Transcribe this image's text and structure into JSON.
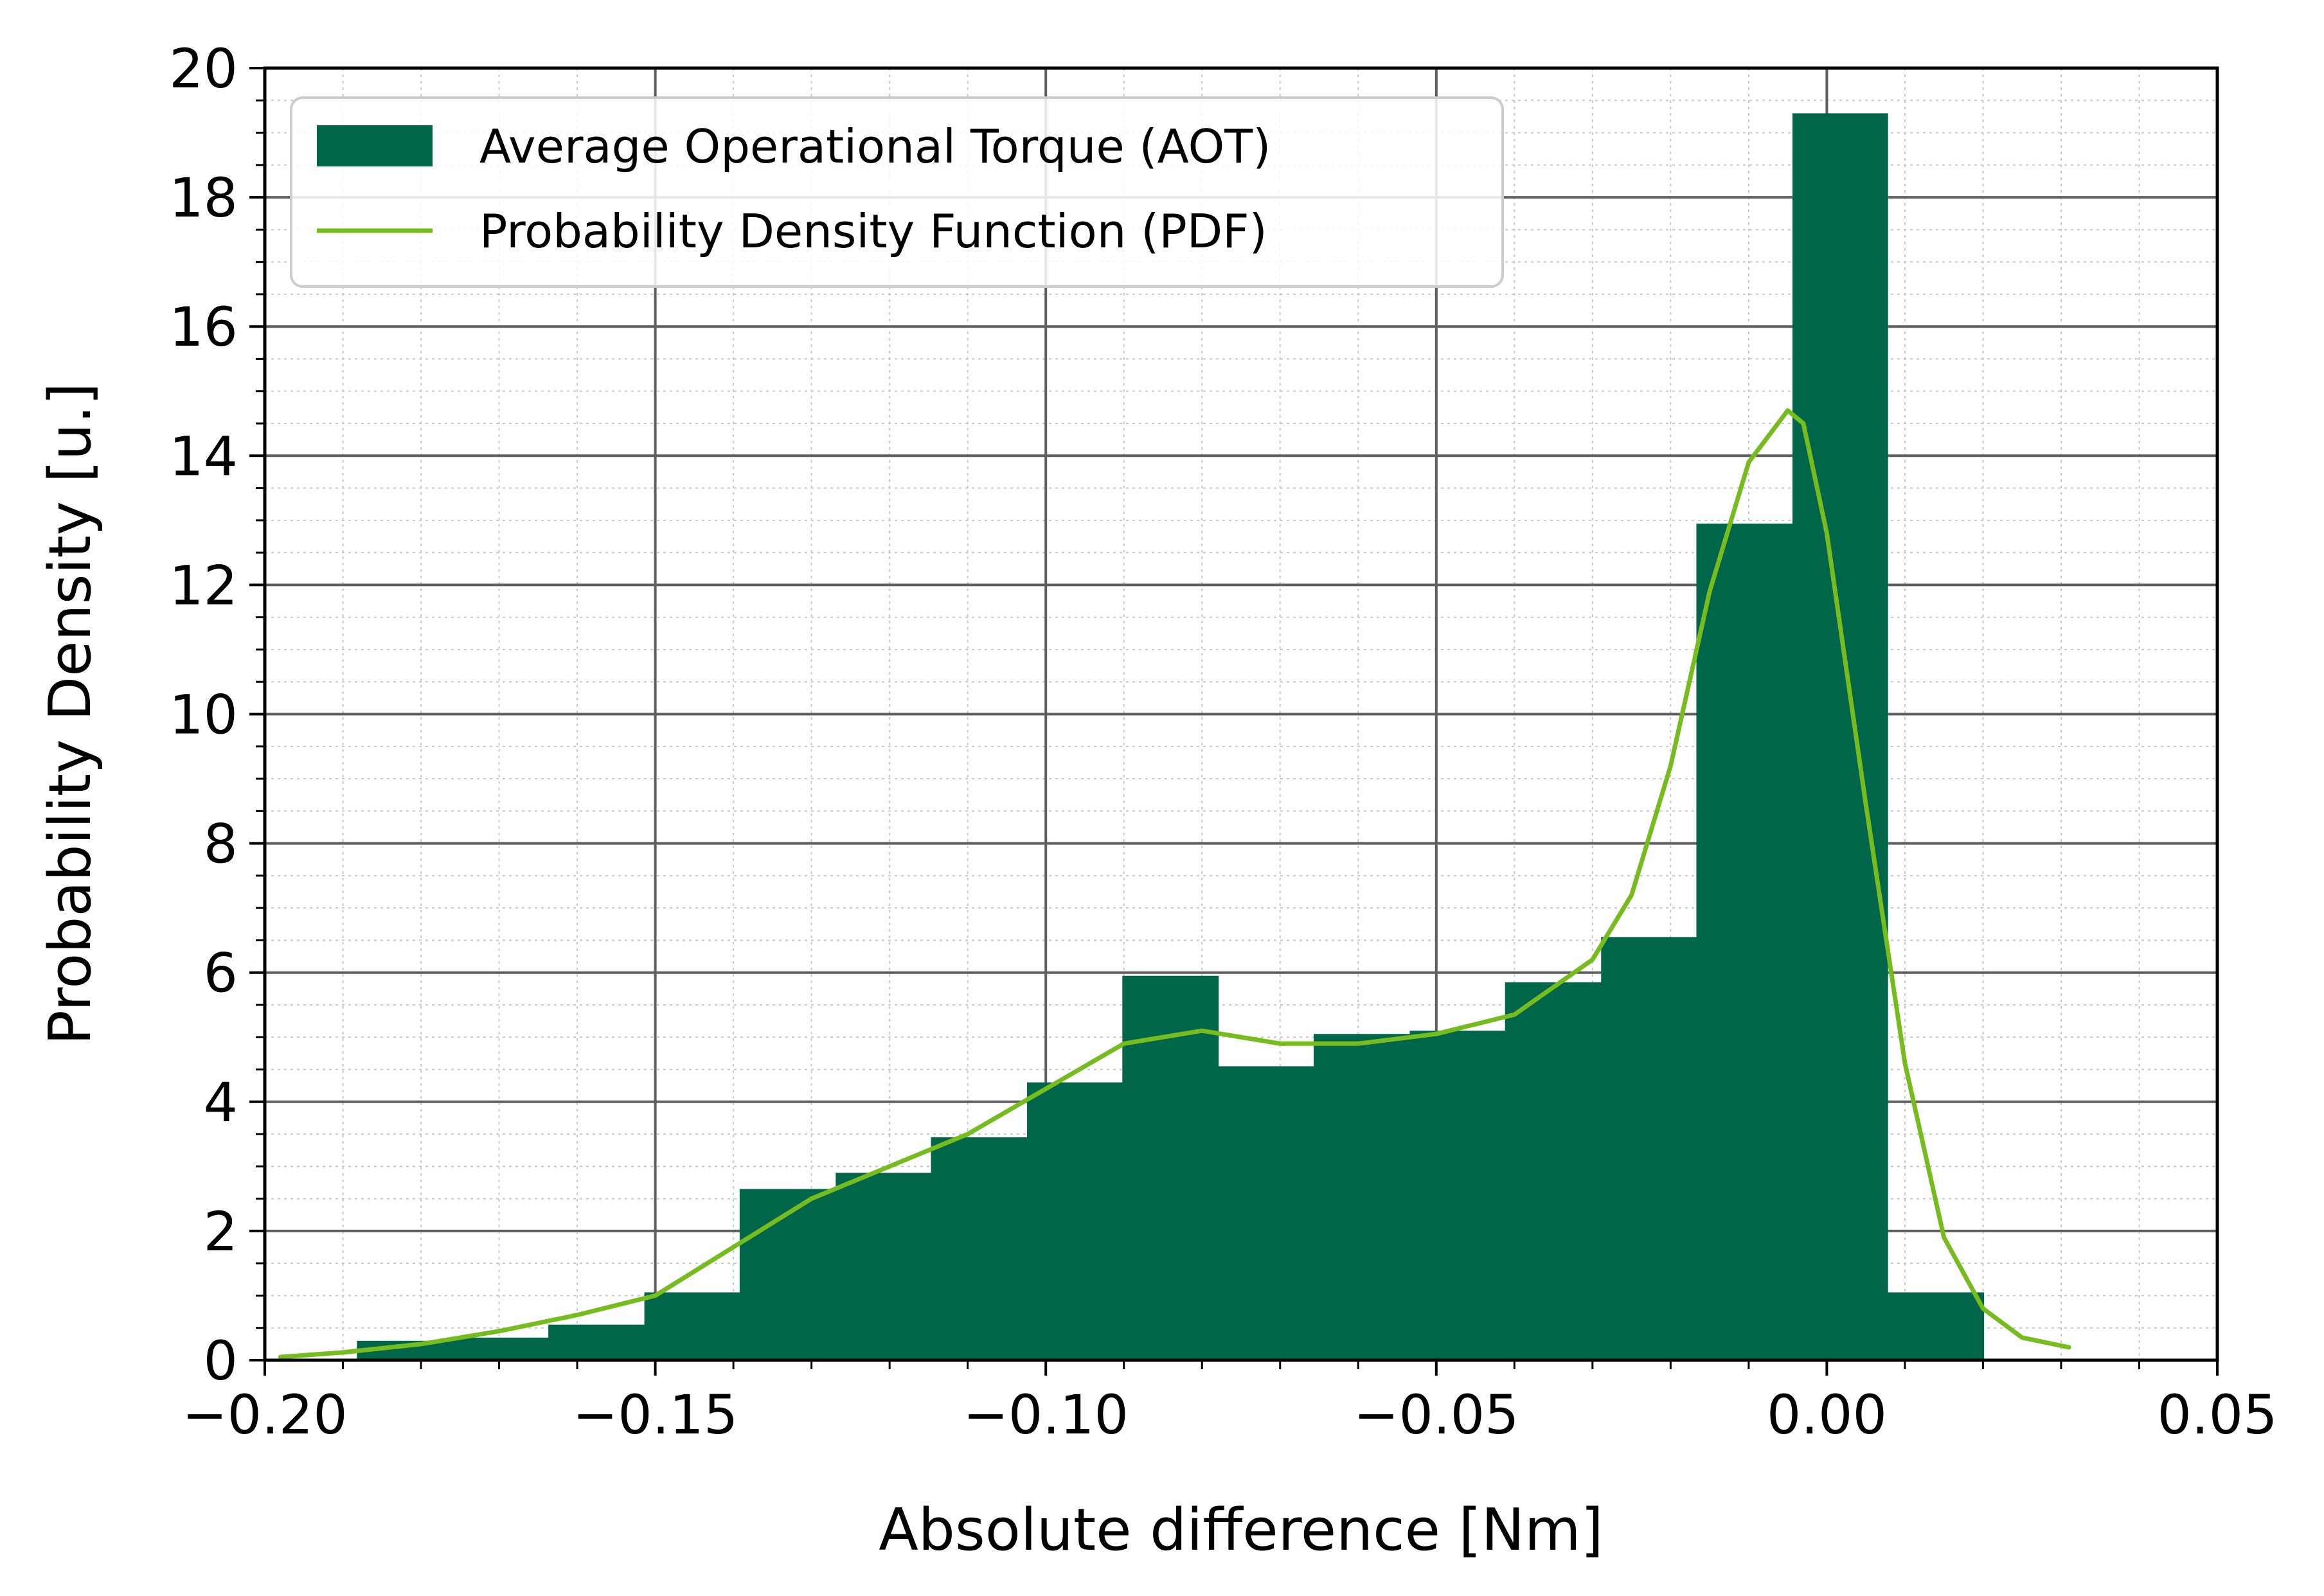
{
  "chart_data": {
    "type": "bar",
    "subtype": "histogram-with-density-line",
    "title": "",
    "xlabel": "Absolute difference [Nm]",
    "ylabel": "Probability Density [u.]",
    "xlim": [
      -0.2,
      0.05
    ],
    "ylim": [
      0,
      20
    ],
    "x_ticks": [
      -0.2,
      -0.15,
      -0.1,
      -0.05,
      0.0,
      0.05
    ],
    "x_tick_labels": [
      "−0.20",
      "−0.15",
      "−0.10",
      "−0.05",
      "0.00",
      "0.05"
    ],
    "y_ticks": [
      0,
      2,
      4,
      6,
      8,
      10,
      12,
      14,
      16,
      18,
      20
    ],
    "y_tick_labels": [
      "0",
      "2",
      "4",
      "6",
      "8",
      "10",
      "12",
      "14",
      "16",
      "18",
      "20"
    ],
    "grid": "major and minor",
    "legend_position": "top-left",
    "colors": {
      "histogram": "#00664a",
      "pdf_line": "#77bc1f",
      "major_grid": "#5f5f5f",
      "minor_grid": "#c8c8c8",
      "axes": "#000000"
    },
    "series": [
      {
        "name": "Average Operational Torque (AOT)",
        "kind": "histogram",
        "bin_edges": [
          -0.1882,
          -0.1759,
          -0.1637,
          -0.1514,
          -0.1392,
          -0.1269,
          -0.1147,
          -0.1024,
          -0.0902,
          -0.0779,
          -0.0657,
          -0.0534,
          -0.0412,
          -0.0289,
          -0.0167,
          -0.0044,
          0.0078,
          0.0201
        ],
        "values": [
          0.3,
          0.35,
          0.55,
          1.05,
          2.65,
          2.9,
          3.45,
          4.3,
          5.95,
          4.55,
          5.05,
          5.1,
          5.85,
          6.55,
          12.95,
          19.3,
          1.05
        ]
      },
      {
        "name": "Probability Density Function (PDF)",
        "kind": "line",
        "x": [
          -0.198,
          -0.19,
          -0.18,
          -0.17,
          -0.16,
          -0.15,
          -0.14,
          -0.13,
          -0.12,
          -0.11,
          -0.1,
          -0.09,
          -0.08,
          -0.07,
          -0.06,
          -0.05,
          -0.04,
          -0.03,
          -0.025,
          -0.02,
          -0.015,
          -0.01,
          -0.005,
          -0.003,
          0.0,
          0.005,
          0.01,
          0.015,
          0.02,
          0.025,
          0.031
        ],
        "y": [
          0.05,
          0.12,
          0.25,
          0.45,
          0.7,
          1.0,
          1.75,
          2.5,
          3.0,
          3.5,
          4.2,
          4.9,
          5.1,
          4.9,
          4.9,
          5.05,
          5.35,
          6.2,
          7.2,
          9.2,
          11.9,
          13.9,
          14.7,
          14.5,
          12.8,
          8.6,
          4.6,
          1.9,
          0.8,
          0.35,
          0.2
        ]
      }
    ]
  }
}
